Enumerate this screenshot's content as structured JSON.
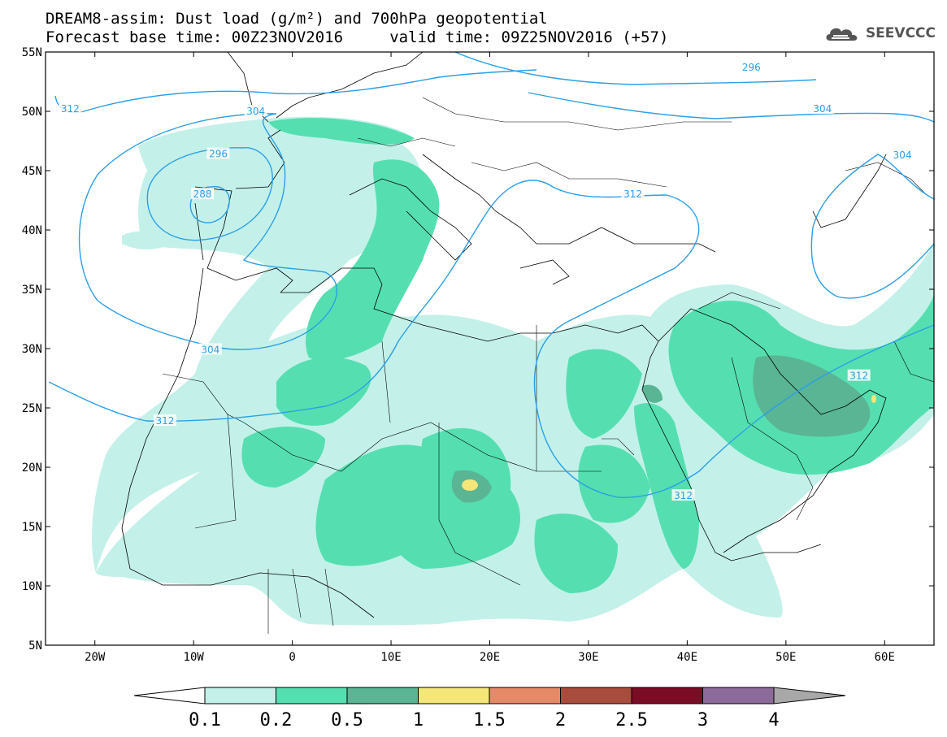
{
  "header": {
    "line1": "DREAM8-assim: Dust load (g/m²) and 700hPa geopotential",
    "line2": "Forecast base time: 00Z23NOV2016     valid time: 09Z25NOV2016 (+57)",
    "logo_text": "SEEVCCC",
    "logo_icon": "cloud-logo-icon"
  },
  "map": {
    "lat_labels": [
      "55N",
      "50N",
      "45N",
      "40N",
      "35N",
      "30N",
      "25N",
      "20N",
      "15N",
      "10N",
      "5N"
    ],
    "lon_labels": [
      "20W",
      "10W",
      "0",
      "10E",
      "20E",
      "30E",
      "40E",
      "50E",
      "60E"
    ],
    "contour_color": "#2a9fe8",
    "contour_labels": [
      {
        "text": "312",
        "lon": -22.5,
        "lat": 50.2
      },
      {
        "text": "304",
        "lon": -3.7,
        "lat": 50.0
      },
      {
        "text": "296",
        "lon": -7.5,
        "lat": 46.4
      },
      {
        "text": "288",
        "lon": -9.1,
        "lat": 43.0
      },
      {
        "text": "296",
        "lon": 46.5,
        "lat": 53.7
      },
      {
        "text": "304",
        "lon": 53.7,
        "lat": 50.2
      },
      {
        "text": "304",
        "lon": 61.8,
        "lat": 46.3
      },
      {
        "text": "312",
        "lon": 34.5,
        "lat": 43.0
      },
      {
        "text": "304",
        "lon": -8.3,
        "lat": 29.9
      },
      {
        "text": "312",
        "lon": -12.9,
        "lat": 23.9
      },
      {
        "text": "312",
        "lon": 39.6,
        "lat": 17.6
      },
      {
        "text": "312",
        "lon": 57.4,
        "lat": 27.7
      }
    ],
    "colors": {
      "dust_0_1": "#c3f1e9",
      "dust_0_2": "#55dfb0",
      "dust_0_5": "#5ab594",
      "dust_1": "#f5e67a",
      "land_border": "#000000"
    }
  },
  "colorbar": {
    "labels": [
      "0.1",
      "0.2",
      "0.5",
      "1",
      "1.5",
      "2",
      "2.5",
      "3",
      "4"
    ],
    "colors": [
      "#ffffff",
      "#c3f1e9",
      "#55dfb0",
      "#5ab594",
      "#f5e67a",
      "#e58a66",
      "#a84d3e",
      "#7a0c26",
      "#8c6a9a",
      "#a8a8a8"
    ]
  }
}
